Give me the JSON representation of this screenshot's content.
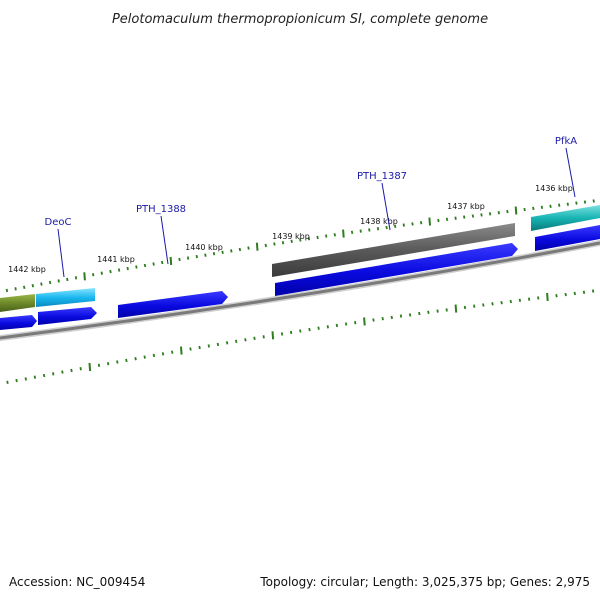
{
  "title": "Pelotomaculum thermopropionicum SI, complete genome",
  "footer": {
    "accession": "Accession: NC_009454",
    "summary": "Topology: circular; Length: 3,025,375 bp; Genes: 2,975"
  },
  "scale_labels": [
    "1436 kbp",
    "1437 kbp",
    "1438 kbp",
    "1439 kbp",
    "1440 kbp",
    "1441 kbp",
    "1442 kbp"
  ],
  "gene_labels": [
    "PfkA",
    "PTH_1387",
    "PTH_1388",
    "DeoC"
  ],
  "colors": {
    "tick": "#2e7d1f",
    "backbone": "#808080",
    "cds_blue": "#0a0ae0",
    "gene_gray": "#5a5a5a",
    "gene_cyan": "#1ab8f0",
    "gene_teal": "#18b4b4",
    "gene_olive": "#6e8a2a",
    "label_blue": "#1a1aa8"
  }
}
